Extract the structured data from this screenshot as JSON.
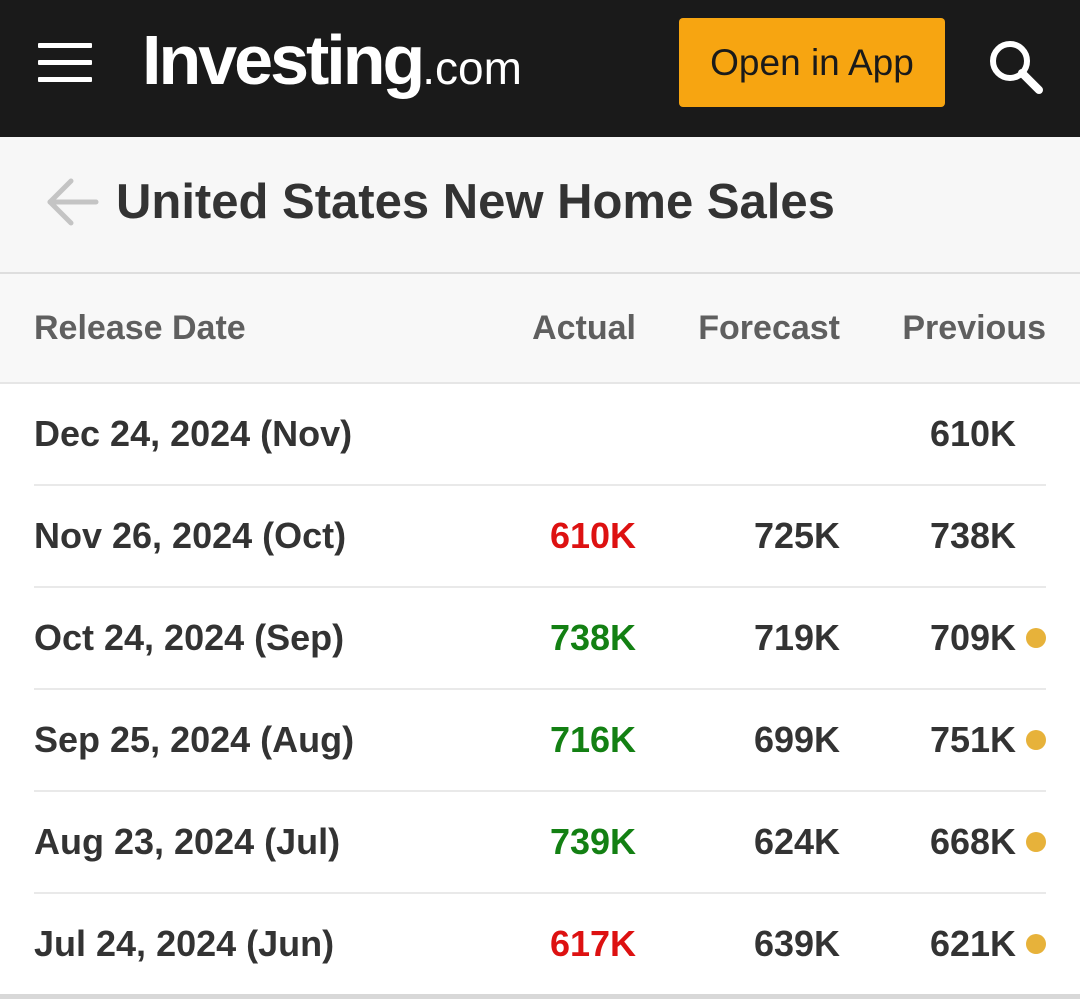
{
  "topbar": {
    "menu_icon": "hamburger-menu-icon",
    "logo_main": "Investing",
    "logo_suffix": ".com",
    "open_app_label": "Open in App",
    "search_icon": "search-icon"
  },
  "titlebar": {
    "back_icon": "back-arrow-icon",
    "title": "United States New Home Sales"
  },
  "table": {
    "headers": {
      "date": "Release Date",
      "actual": "Actual",
      "forecast": "Forecast",
      "previous": "Previous"
    },
    "rows": [
      {
        "date": "Dec 24, 2024 (Nov)",
        "actual": "",
        "actual_status": "none",
        "forecast": "",
        "previous": "610K",
        "previous_revised": false
      },
      {
        "date": "Nov 26, 2024 (Oct)",
        "actual": "610K",
        "actual_status": "negative",
        "forecast": "725K",
        "previous": "738K",
        "previous_revised": false
      },
      {
        "date": "Oct 24, 2024 (Sep)",
        "actual": "738K",
        "actual_status": "positive",
        "forecast": "719K",
        "previous": "709K",
        "previous_revised": true
      },
      {
        "date": "Sep 25, 2024 (Aug)",
        "actual": "716K",
        "actual_status": "positive",
        "forecast": "699K",
        "previous": "751K",
        "previous_revised": true
      },
      {
        "date": "Aug 23, 2024 (Jul)",
        "actual": "739K",
        "actual_status": "positive",
        "forecast": "624K",
        "previous": "668K",
        "previous_revised": true
      },
      {
        "date": "Jul 24, 2024 (Jun)",
        "actual": "617K",
        "actual_status": "negative",
        "forecast": "639K",
        "previous": "621K",
        "previous_revised": true
      }
    ]
  },
  "colors": {
    "topbar_bg": "#1a1a1a",
    "brand_accent": "#f7a511",
    "positive": "#138013",
    "negative": "#dd1111",
    "neutral_text": "#333333",
    "revised_dot": "#e7b23a"
  }
}
